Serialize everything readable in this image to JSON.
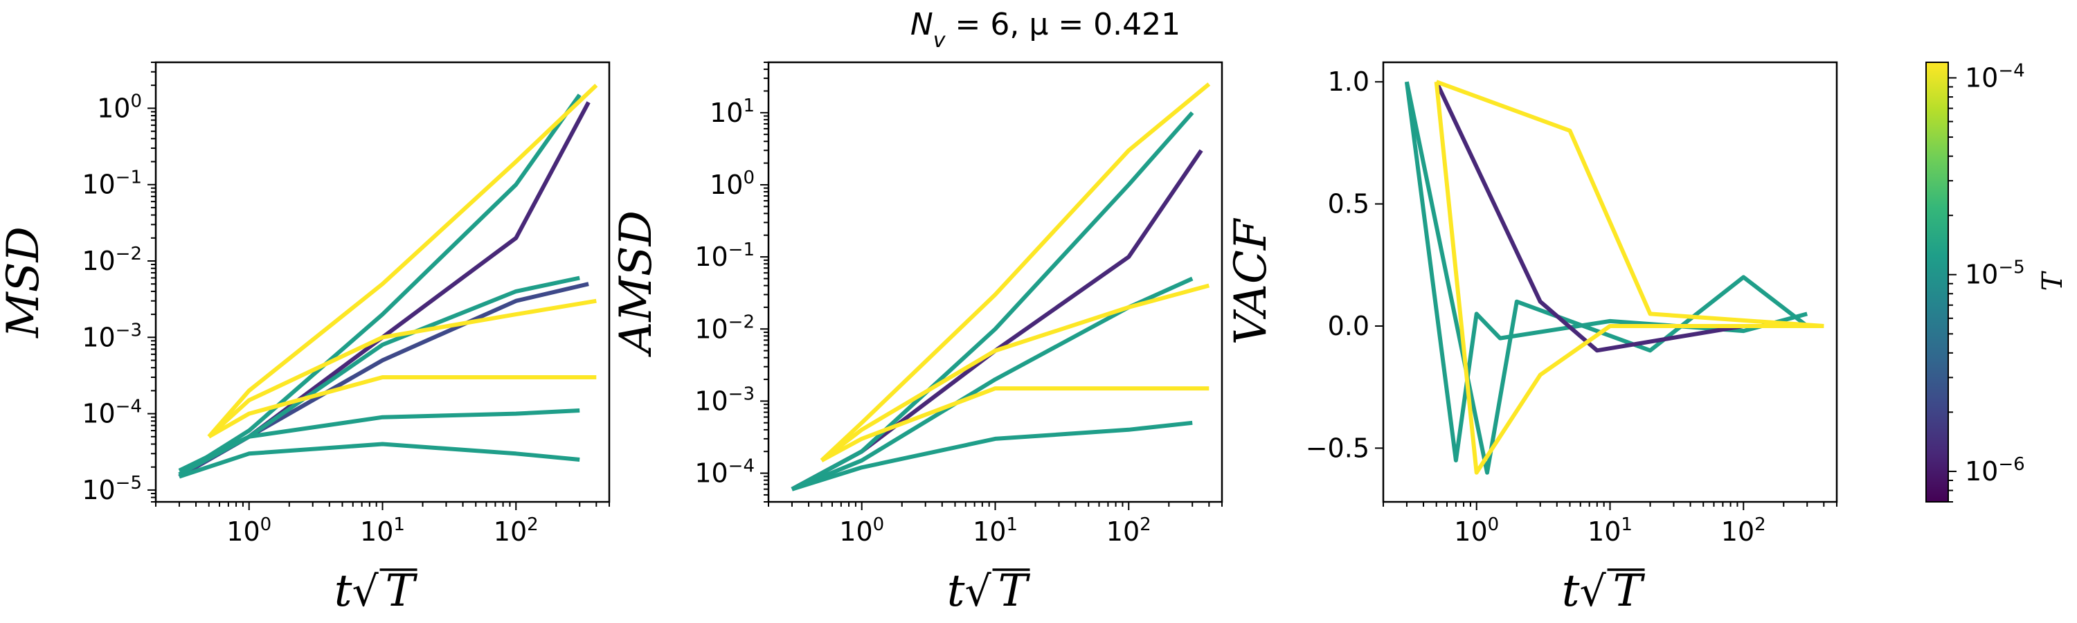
{
  "chart_data": {
    "type": "line",
    "title": "N_v = 6, μ = 0.421",
    "title_parts": {
      "n": "N",
      "n_sub": "v",
      "rest": " = 6, μ = 0.421"
    },
    "xlabel": "t√T",
    "xlabel_parts": {
      "t": "t",
      "root": "√",
      "T": "T"
    },
    "xscale": "log",
    "xlim": [
      0.2,
      500
    ],
    "x_ticks": [
      {
        "value": 1,
        "base": "10",
        "exp": "0"
      },
      {
        "value": 10,
        "base": "10",
        "exp": "1"
      },
      {
        "value": 100,
        "base": "10",
        "exp": "2"
      }
    ],
    "colormap": "viridis",
    "colors": {
      "low_T": "#440154",
      "mid_T": "#21918c",
      "high_T": "#e8e419",
      "cmap_stops": [
        "#440154",
        "#482878",
        "#3e4989",
        "#31688e",
        "#26828e",
        "#1f9e89",
        "#35b779",
        "#6ece58",
        "#b5de2b",
        "#fde725"
      ]
    },
    "colorbar": {
      "label": "T",
      "scale": "log",
      "range": [
        7e-07,
        0.00012
      ],
      "ticks": [
        {
          "value": 0.0001,
          "base": "10",
          "exp": "−4"
        },
        {
          "value": 1e-05,
          "base": "10",
          "exp": "−5"
        },
        {
          "value": 1e-06,
          "base": "10",
          "exp": "−6"
        }
      ]
    },
    "panels": [
      {
        "id": "msd",
        "ylabel": "MSD",
        "yscale": "log",
        "ylim": [
          7e-06,
          4
        ],
        "y_ticks": [
          {
            "value": 1e-05,
            "base": "10",
            "exp": "−5"
          },
          {
            "value": 0.0001,
            "base": "10",
            "exp": "−4"
          },
          {
            "value": 0.001,
            "base": "10",
            "exp": "−3"
          },
          {
            "value": 0.01,
            "base": "10",
            "exp": "−2"
          },
          {
            "value": 0.1,
            "base": "10",
            "exp": "−1"
          },
          {
            "value": 1,
            "base": "10",
            "exp": "0"
          }
        ],
        "series": [
          {
            "T": 1e-06,
            "values": [
              [
                0.3,
                1.5e-05
              ],
              [
                1,
                5e-05
              ],
              [
                10,
                0.001
              ],
              [
                100,
                0.02
              ],
              [
                350,
                1.2
              ]
            ]
          },
          {
            "T": 2e-06,
            "values": [
              [
                0.3,
                1.5e-05
              ],
              [
                1,
                5e-05
              ],
              [
                10,
                0.0005
              ],
              [
                100,
                0.003
              ],
              [
                350,
                0.005
              ]
            ]
          },
          {
            "T": 1e-05,
            "values": [
              [
                0.3,
                1.5e-05
              ],
              [
                1,
                3e-05
              ],
              [
                10,
                4e-05
              ],
              [
                100,
                3e-05
              ],
              [
                300,
                2.5e-05
              ]
            ]
          },
          {
            "T": 1e-05,
            "values": [
              [
                0.3,
                1.8e-05
              ],
              [
                1,
                5e-05
              ],
              [
                10,
                9e-05
              ],
              [
                100,
                0.0001
              ],
              [
                300,
                0.00011
              ]
            ]
          },
          {
            "T": 1e-05,
            "values": [
              [
                0.3,
                1.6e-05
              ],
              [
                1,
                5e-05
              ],
              [
                10,
                0.0008
              ],
              [
                100,
                0.004
              ],
              [
                300,
                0.006
              ]
            ]
          },
          {
            "T": 1e-05,
            "values": [
              [
                0.3,
                1.6e-05
              ],
              [
                1,
                6e-05
              ],
              [
                10,
                0.002
              ],
              [
                100,
                0.1
              ],
              [
                300,
                1.5
              ]
            ]
          },
          {
            "T": 0.0001,
            "values": [
              [
                0.5,
                5e-05
              ],
              [
                1,
                0.0001
              ],
              [
                10,
                0.0003
              ],
              [
                100,
                0.0003
              ],
              [
                400,
                0.0003
              ]
            ]
          },
          {
            "T": 0.0001,
            "values": [
              [
                0.5,
                5e-05
              ],
              [
                1,
                0.00015
              ],
              [
                10,
                0.001
              ],
              [
                100,
                0.002
              ],
              [
                400,
                0.003
              ]
            ]
          },
          {
            "T": 0.0001,
            "values": [
              [
                0.5,
                5e-05
              ],
              [
                1,
                0.0002
              ],
              [
                10,
                0.005
              ],
              [
                100,
                0.2
              ],
              [
                400,
                2
              ]
            ]
          }
        ]
      },
      {
        "id": "amsd",
        "ylabel": "AMSD",
        "yscale": "log",
        "ylim": [
          4e-05,
          50
        ],
        "y_ticks": [
          {
            "value": 0.0001,
            "base": "10",
            "exp": "−4"
          },
          {
            "value": 0.001,
            "base": "10",
            "exp": "−3"
          },
          {
            "value": 0.01,
            "base": "10",
            "exp": "−2"
          },
          {
            "value": 0.1,
            "base": "10",
            "exp": "−1"
          },
          {
            "value": 1,
            "base": "10",
            "exp": "0"
          },
          {
            "value": 10,
            "base": "10",
            "exp": "1"
          }
        ],
        "series": [
          {
            "T": 1e-06,
            "values": [
              [
                0.3,
                6e-05
              ],
              [
                1,
                0.0002
              ],
              [
                10,
                0.005
              ],
              [
                100,
                0.1
              ],
              [
                350,
                3
              ]
            ]
          },
          {
            "T": 1e-05,
            "values": [
              [
                0.3,
                6e-05
              ],
              [
                1,
                0.00012
              ],
              [
                10,
                0.0003
              ],
              [
                100,
                0.0004
              ],
              [
                300,
                0.0005
              ]
            ]
          },
          {
            "T": 1e-05,
            "values": [
              [
                0.3,
                6e-05
              ],
              [
                1,
                0.00015
              ],
              [
                10,
                0.002
              ],
              [
                100,
                0.02
              ],
              [
                300,
                0.05
              ]
            ]
          },
          {
            "T": 1e-05,
            "values": [
              [
                0.3,
                6e-05
              ],
              [
                1,
                0.0002
              ],
              [
                10,
                0.01
              ],
              [
                100,
                1
              ],
              [
                300,
                10
              ]
            ]
          },
          {
            "T": 0.0001,
            "values": [
              [
                0.5,
                0.00015
              ],
              [
                1,
                0.0003
              ],
              [
                10,
                0.0015
              ],
              [
                100,
                0.0015
              ],
              [
                400,
                0.0015
              ]
            ]
          },
          {
            "T": 0.0001,
            "values": [
              [
                0.5,
                0.00015
              ],
              [
                1,
                0.0004
              ],
              [
                10,
                0.005
              ],
              [
                100,
                0.02
              ],
              [
                400,
                0.04
              ]
            ]
          },
          {
            "T": 0.0001,
            "values": [
              [
                0.5,
                0.00015
              ],
              [
                1,
                0.0005
              ],
              [
                10,
                0.03
              ],
              [
                100,
                3
              ],
              [
                400,
                25
              ]
            ]
          }
        ]
      },
      {
        "id": "vacf",
        "ylabel": "VACF",
        "yscale": "linear",
        "ylim": [
          -0.72,
          1.08
        ],
        "y_ticks": [
          {
            "value": 1.0,
            "label": "1.0"
          },
          {
            "value": 0.5,
            "label": "0.5"
          },
          {
            "value": 0.0,
            "label": "0.0"
          },
          {
            "value": -0.5,
            "label": "−0.5"
          }
        ],
        "series": [
          {
            "T": 1e-05,
            "values": [
              [
                0.3,
                1.0
              ],
              [
                0.7,
                -0.55
              ],
              [
                1,
                0.05
              ],
              [
                1.5,
                -0.05
              ],
              [
                10,
                0.02
              ],
              [
                100,
                -0.02
              ],
              [
                300,
                0.05
              ]
            ]
          },
          {
            "T": 1e-05,
            "values": [
              [
                0.3,
                1.0
              ],
              [
                1.2,
                -0.6
              ],
              [
                2,
                0.1
              ],
              [
                20,
                -0.1
              ],
              [
                100,
                0.2
              ],
              [
                300,
                0.0
              ]
            ]
          },
          {
            "T": 1e-06,
            "values": [
              [
                0.5,
                1.0
              ],
              [
                3,
                0.1
              ],
              [
                8,
                -0.1
              ],
              [
                100,
                0.0
              ],
              [
                350,
                0.0
              ]
            ]
          },
          {
            "T": 0.0001,
            "values": [
              [
                0.5,
                1.0
              ],
              [
                1,
                -0.6
              ],
              [
                3,
                -0.2
              ],
              [
                10,
                0.0
              ],
              [
                400,
                0.0
              ]
            ]
          },
          {
            "T": 0.0001,
            "values": [
              [
                0.5,
                1.0
              ],
              [
                5,
                0.8
              ],
              [
                20,
                0.05
              ],
              [
                400,
                0.0
              ]
            ]
          }
        ]
      }
    ]
  }
}
